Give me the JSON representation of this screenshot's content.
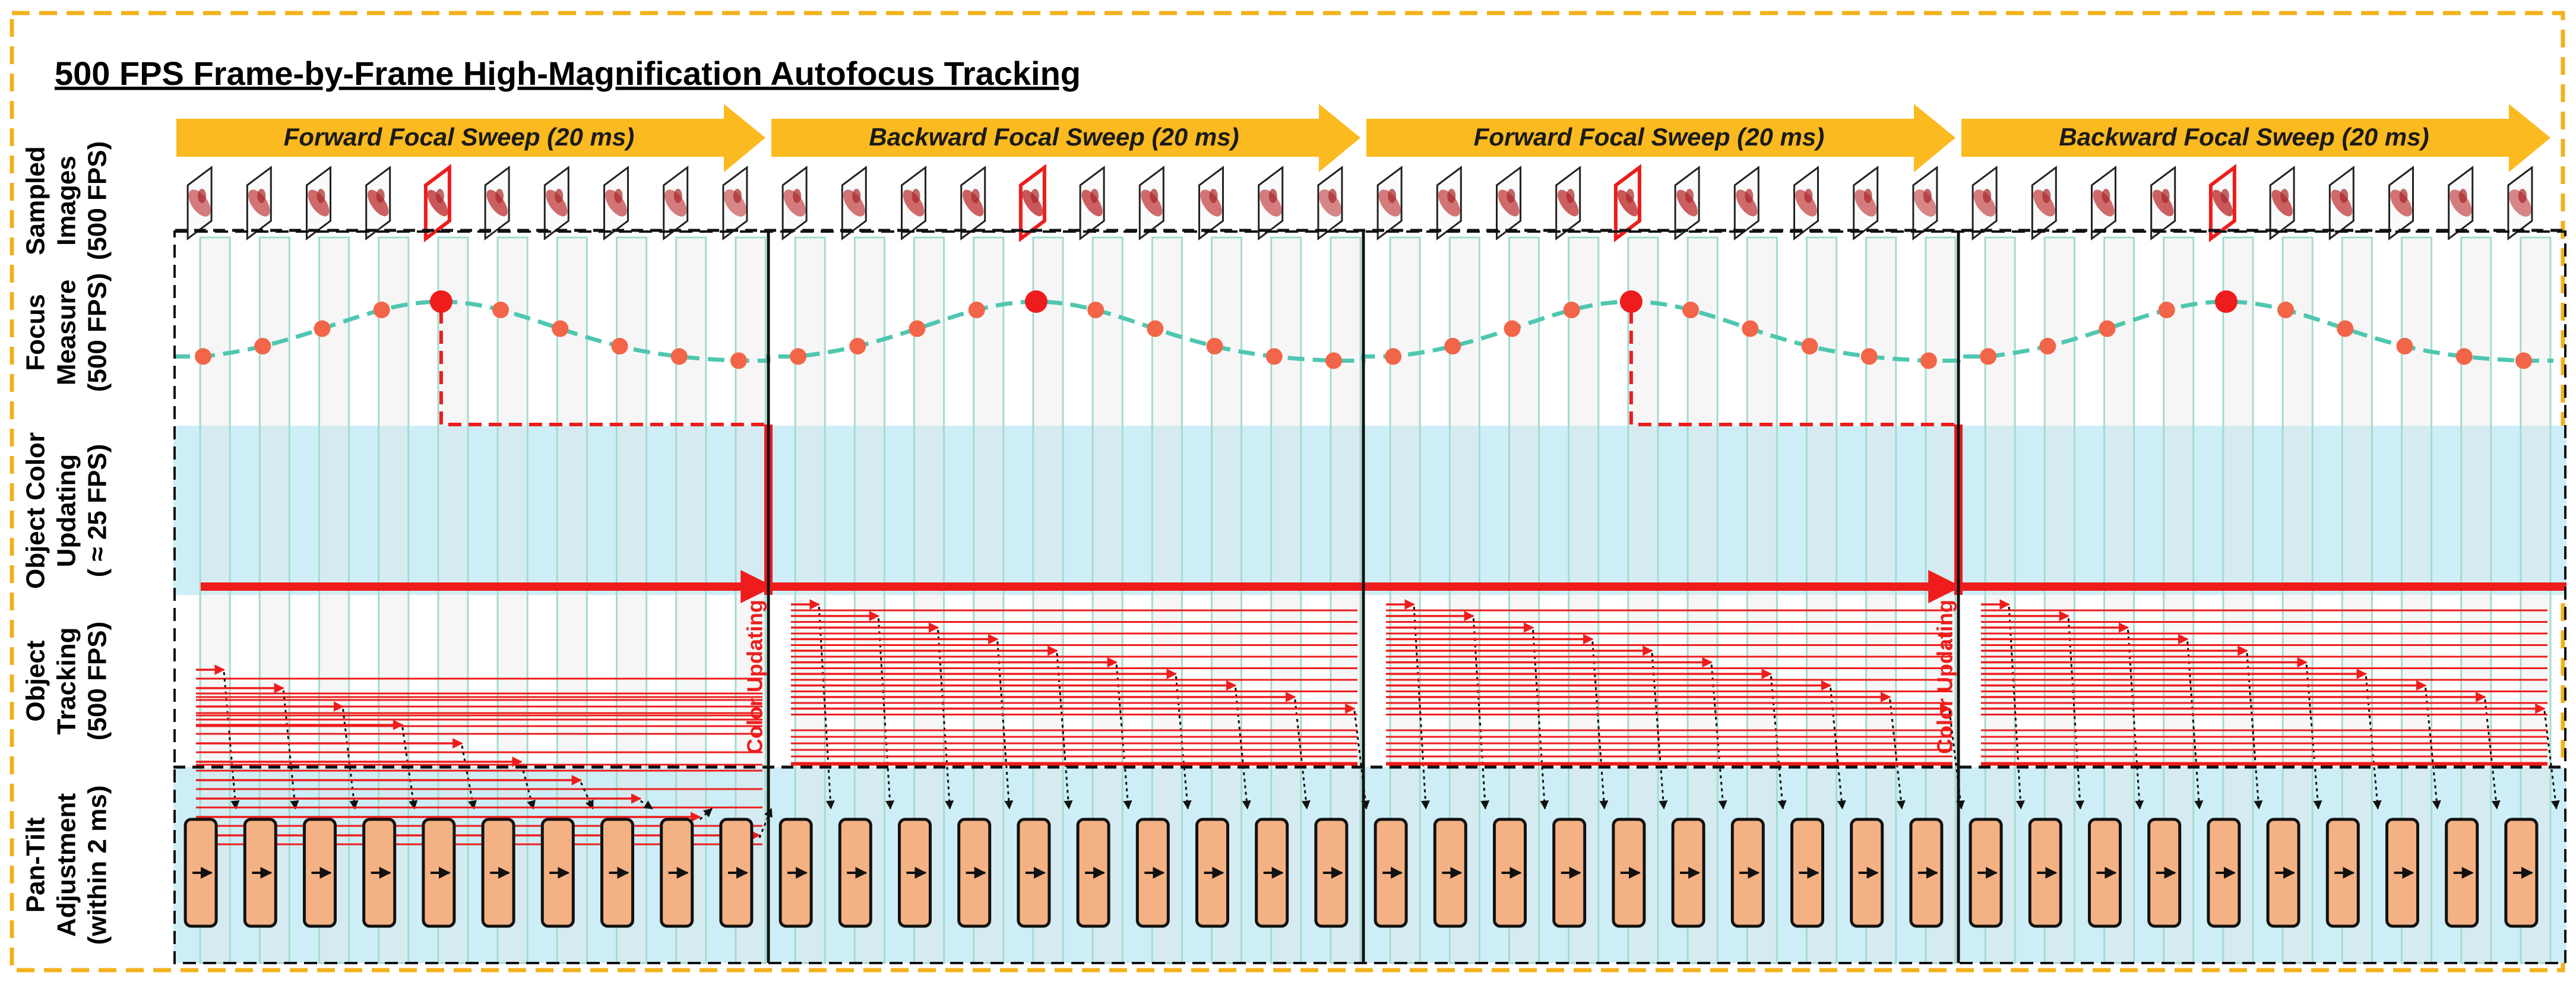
{
  "title": "500 FPS Frame-by-Frame High-Magnification Autofocus Tracking",
  "sweeps": [
    {
      "label": "Forward Focal Sweep (20 ms)"
    },
    {
      "label": "Backward Focal Sweep (20 ms)"
    },
    {
      "label": "Forward Focal Sweep (20 ms)"
    },
    {
      "label": "Backward Focal Sweep (20 ms)"
    }
  ],
  "rows": [
    {
      "id": "images",
      "lines": [
        "Sampled",
        "Images",
        "(500 FPS)"
      ]
    },
    {
      "id": "focus",
      "lines": [
        "Focus",
        "Measure",
        "(500 FPS)"
      ]
    },
    {
      "id": "color",
      "lines": [
        "Object Color",
        "Updating",
        "( ≈ 25 FPS)"
      ]
    },
    {
      "id": "track",
      "lines": [
        "Object",
        "Tracking",
        "(500 FPS)"
      ]
    },
    {
      "id": "pantilt",
      "lines": [
        "Pan-Tilt",
        "Adjustment",
        "(within 2 ms)"
      ]
    }
  ],
  "color_updating_label": "Color Updating",
  "frames_per_sweep": 10,
  "peak_frame_index": 4,
  "colors": {
    "border": "#f2b21c",
    "sweep_arrow": "#fbba1f",
    "highlight": "#ee1c1c",
    "curve": "#4fc7b0",
    "dot": "#f26548",
    "band": "#cdeef7",
    "box": "#f4b183",
    "frame_line": "#a3dccd"
  }
}
